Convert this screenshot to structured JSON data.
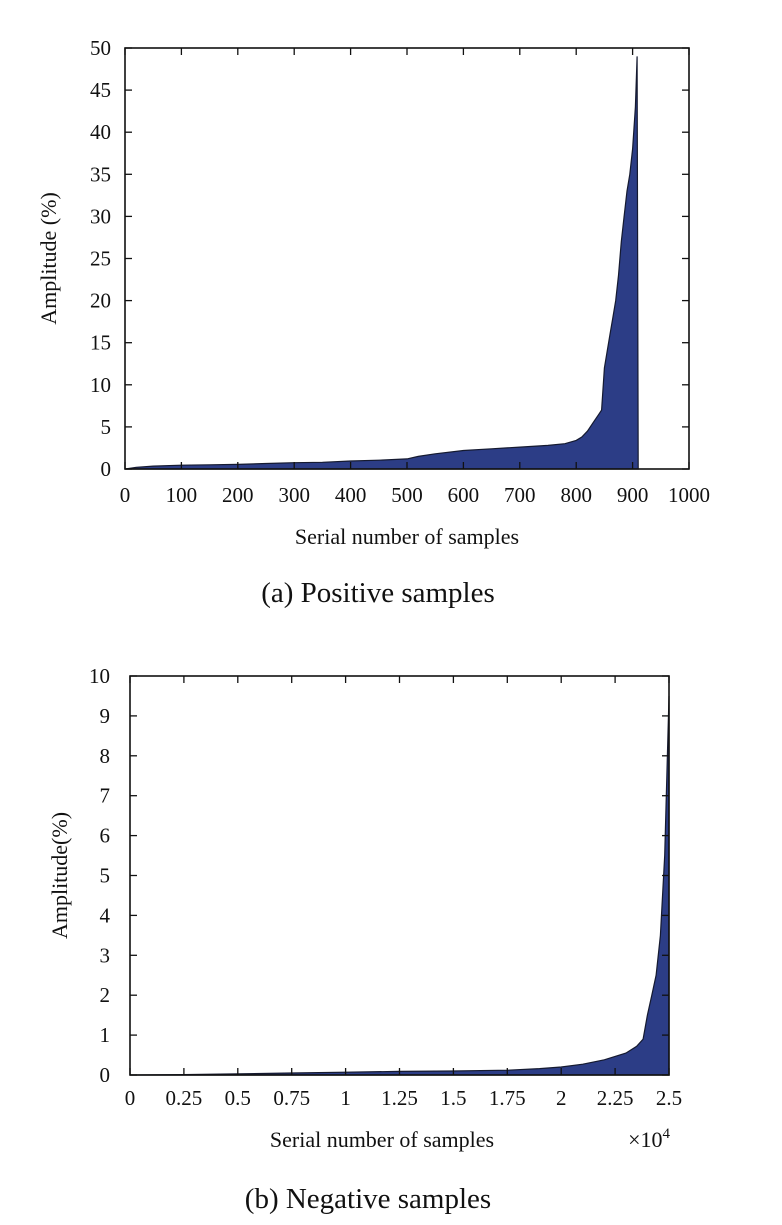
{
  "chart_data": [
    {
      "type": "area",
      "caption": "(a) Positive samples",
      "xlabel": "Serial number of samples",
      "ylabel": "Amplitude (%)",
      "xlim": [
        0,
        1000
      ],
      "ylim": [
        0,
        50
      ],
      "xticks": [
        0,
        100,
        200,
        300,
        400,
        500,
        600,
        700,
        800,
        900,
        1000
      ],
      "xtick_labels": [
        "0",
        "100",
        "200",
        "300",
        "400",
        "500",
        "600",
        "700",
        "800",
        "900",
        "1000"
      ],
      "yticks": [
        0,
        5,
        10,
        15,
        20,
        25,
        30,
        35,
        40,
        45,
        50
      ],
      "ytick_labels": [
        "0",
        "5",
        "10",
        "15",
        "20",
        "25",
        "30",
        "35",
        "40",
        "45",
        "50"
      ],
      "fill_color": "#2c3d86",
      "grid": false,
      "series": [
        {
          "x": [
            0,
            20,
            50,
            100,
            150,
            200,
            250,
            300,
            350,
            400,
            450,
            500,
            520,
            550,
            600,
            650,
            700,
            750,
            780,
            800,
            810,
            820,
            830,
            840,
            845,
            850,
            855,
            860,
            865,
            870,
            875,
            880,
            885,
            890,
            895,
            900,
            905,
            908,
            910
          ],
          "y": [
            0,
            0.2,
            0.35,
            0.45,
            0.5,
            0.55,
            0.65,
            0.75,
            0.8,
            0.95,
            1.05,
            1.2,
            1.5,
            1.8,
            2.2,
            2.4,
            2.6,
            2.8,
            3.0,
            3.4,
            3.8,
            4.5,
            5.5,
            6.5,
            7.0,
            12.0,
            14.0,
            16.0,
            18.0,
            20.0,
            23.0,
            27.0,
            30.0,
            33.0,
            35.0,
            38.0,
            43.0,
            49.0,
            0
          ]
        }
      ]
    },
    {
      "type": "area",
      "caption": "(b) Negative samples",
      "xlabel": "Serial number of samples",
      "x_multiplier_label": "×10",
      "x_multiplier_exponent": "4",
      "ylabel": "Amplitude(%)",
      "xlim": [
        0,
        2.5
      ],
      "ylim": [
        0,
        10
      ],
      "xticks": [
        0,
        0.25,
        0.5,
        0.75,
        1,
        1.25,
        1.5,
        1.75,
        2,
        2.25,
        2.5
      ],
      "xtick_labels": [
        "0",
        "0.25",
        "0.5",
        "0.75",
        "1",
        "1.25",
        "1.5",
        "1.75",
        "2",
        "2.25",
        "2.5"
      ],
      "yticks": [
        0,
        1,
        2,
        3,
        4,
        5,
        6,
        7,
        8,
        9,
        10
      ],
      "ytick_labels": [
        "0",
        "1",
        "2",
        "3",
        "4",
        "5",
        "6",
        "7",
        "8",
        "9",
        "10"
      ],
      "fill_color": "#2c3d86",
      "grid": false,
      "series": [
        {
          "x": [
            0,
            0.25,
            0.5,
            0.75,
            1.0,
            1.25,
            1.5,
            1.75,
            1.9,
            2.0,
            2.1,
            2.2,
            2.3,
            2.35,
            2.38,
            2.4,
            2.42,
            2.44,
            2.46,
            2.48,
            2.5
          ],
          "y": [
            0,
            0.01,
            0.03,
            0.05,
            0.07,
            0.09,
            0.1,
            0.12,
            0.16,
            0.2,
            0.27,
            0.38,
            0.55,
            0.72,
            0.9,
            1.5,
            2.0,
            2.5,
            3.5,
            5.5,
            9.5
          ]
        }
      ]
    }
  ]
}
